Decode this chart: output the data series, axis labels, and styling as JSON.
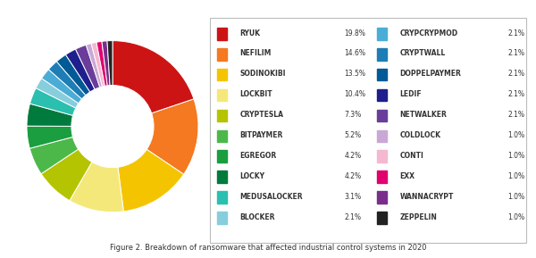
{
  "labels": [
    "RYUK",
    "NEFILIM",
    "SODINOKIBI",
    "LOCKBIT",
    "CRYPTESLA",
    "BITPAYMER",
    "EGREGOR",
    "LOCKY",
    "MEDUSALOCKER",
    "BLOCKER",
    "CRYPCRYPMOD",
    "CRYPTWALL",
    "DOPPELPAYMER",
    "LEDIF",
    "NETWALKER",
    "COLDLOCK",
    "CONTI",
    "EXX",
    "WANNACRYPT",
    "ZEPPELIN"
  ],
  "values": [
    19.8,
    14.6,
    13.5,
    10.4,
    7.3,
    5.2,
    4.2,
    4.2,
    3.1,
    2.1,
    2.1,
    2.1,
    2.1,
    2.1,
    2.1,
    1.0,
    1.0,
    1.0,
    1.0,
    1.0
  ],
  "colors": [
    "#cc1414",
    "#f47920",
    "#f5c400",
    "#f5e87a",
    "#b5c400",
    "#4db84a",
    "#1a9e3f",
    "#007a3d",
    "#2bbfb0",
    "#87cedc",
    "#4bacd6",
    "#1e7db5",
    "#005a96",
    "#1e1e8c",
    "#6a3d9a",
    "#c9a8d6",
    "#f5b8d0",
    "#e0006e",
    "#7b2d8c",
    "#222222"
  ],
  "figure_caption": "Figure 2. Breakdown of ransomware that affected industrial control systems in 2020",
  "background_color": "#ffffff",
  "legend_labels_col1": [
    "RYUK",
    "NEFILIM",
    "SODINOKIBI",
    "LOCKBIT",
    "CRYPTESLA",
    "BITPAYMER",
    "EGREGOR",
    "LOCKY",
    "MEDUSALOCKER",
    "BLOCKER"
  ],
  "legend_values_col1": [
    "19.8%",
    "14.6%",
    "13.5%",
    "10.4%",
    "7.3%",
    "5.2%",
    "4.2%",
    "4.2%",
    "3.1%",
    "2.1%"
  ],
  "legend_labels_col2": [
    "CRYPCRYPMOD",
    "CRYPTWALL",
    "DOPPELPAYMER",
    "LEDIF",
    "NETWALKER",
    "COLDLOCK",
    "CONTI",
    "EXX",
    "WANNACRYPT",
    "ZEPPELIN"
  ],
  "legend_values_col2": [
    "2.1%",
    "2.1%",
    "2.1%",
    "2.1%",
    "2.1%",
    "1.0%",
    "1.0%",
    "1.0%",
    "1.0%",
    "1.0%"
  ]
}
